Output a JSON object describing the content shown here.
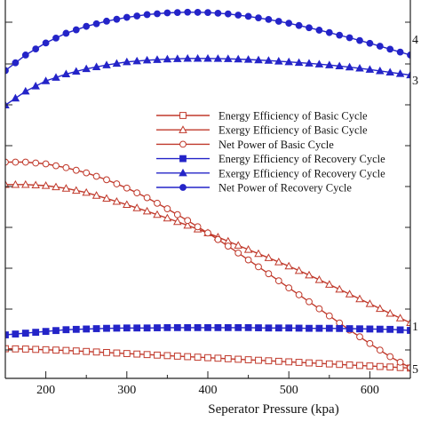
{
  "chart_data": {
    "type": "line",
    "xlabel": "Seperator Pressure (kpa)",
    "ylabel": "",
    "xlim": [
      150,
      650
    ],
    "ylim": [
      0,
      10
    ],
    "x_ticks": [
      200,
      300,
      400,
      500,
      600
    ],
    "y_tick_labels_right": [
      "4",
      "3",
      "1",
      "5"
    ],
    "grid": false,
    "legend_position": "center-right",
    "x": [
      150,
      175,
      200,
      225,
      250,
      275,
      300,
      325,
      350,
      375,
      400,
      425,
      450,
      475,
      500,
      525,
      550,
      575,
      600,
      625,
      650
    ],
    "series": [
      {
        "name": "Energy Efficiency of Basic Cycle",
        "color": "#c0392b",
        "marker": "square-open",
        "values": [
          0.55,
          0.54,
          0.52,
          0.5,
          0.47,
          0.44,
          0.41,
          0.38,
          0.35,
          0.32,
          0.29,
          0.26,
          0.23,
          0.2,
          0.17,
          0.14,
          0.11,
          0.08,
          0.05,
          0.02,
          -0.01
        ]
      },
      {
        "name": "Exergy Efficiency of Basic Cycle",
        "color": "#c0392b",
        "marker": "triangle-open",
        "values": [
          5.3,
          5.3,
          5.27,
          5.19,
          5.07,
          4.9,
          4.72,
          4.53,
          4.33,
          4.12,
          3.9,
          3.66,
          3.42,
          3.18,
          2.94,
          2.68,
          2.41,
          2.13,
          1.85,
          1.57,
          1.3
        ]
      },
      {
        "name": "Net Power of Basic Cycle",
        "color": "#c0392b",
        "marker": "circle-open",
        "values": [
          5.95,
          5.95,
          5.9,
          5.79,
          5.64,
          5.44,
          5.2,
          4.92,
          4.6,
          4.26,
          3.9,
          3.52,
          3.12,
          2.72,
          2.31,
          1.91,
          1.5,
          1.09,
          0.7,
          0.32,
          0.0
        ]
      },
      {
        "name": "Energy Efficiency of Recovery Cycle",
        "color": "#2424c8",
        "marker": "square-filled",
        "values": [
          0.95,
          1.0,
          1.05,
          1.1,
          1.12,
          1.14,
          1.15,
          1.15,
          1.16,
          1.16,
          1.16,
          1.16,
          1.16,
          1.15,
          1.15,
          1.14,
          1.14,
          1.13,
          1.12,
          1.11,
          1.08
        ]
      },
      {
        "name": "Exergy Efficiency of Recovery Cycle",
        "color": "#2424c8",
        "marker": "triangle-filled",
        "values": [
          7.6,
          8.0,
          8.3,
          8.5,
          8.65,
          8.76,
          8.85,
          8.9,
          8.93,
          8.95,
          8.95,
          8.94,
          8.92,
          8.89,
          8.85,
          8.81,
          8.76,
          8.7,
          8.63,
          8.55,
          8.47
        ]
      },
      {
        "name": "Net Power of Recovery Cycle",
        "color": "#2424c8",
        "marker": "circle-filled",
        "values": [
          8.6,
          9.05,
          9.4,
          9.68,
          9.88,
          10.03,
          10.14,
          10.22,
          10.27,
          10.29,
          10.28,
          10.24,
          10.17,
          10.08,
          9.97,
          9.84,
          9.7,
          9.55,
          9.39,
          9.22,
          9.05
        ]
      }
    ]
  }
}
